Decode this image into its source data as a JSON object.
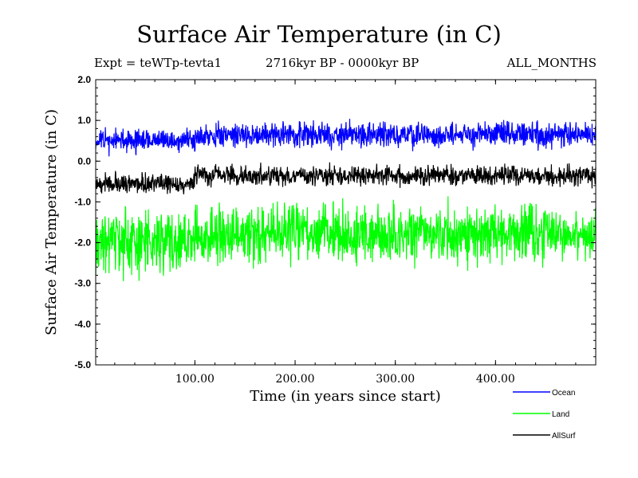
{
  "chart_data": {
    "type": "line",
    "title": "Surface Air Temperature (in C)",
    "subtitle_left": "Expt = teWTp-tevta1",
    "subtitle_center": "2716kyr BP - 0000kyr BP",
    "subtitle_right": "ALL_MONTHS",
    "xlabel": "Time (in years since start)",
    "ylabel": "Surface Air Temperature (in C)",
    "xlim": [
      1,
      500
    ],
    "ylim": [
      -5.0,
      2.0
    ],
    "xticks": [
      100,
      200,
      300,
      400
    ],
    "xtick_labels": [
      "100.00",
      "200.00",
      "300.00",
      "400.00"
    ],
    "yticks": [
      2.0,
      1.0,
      0.0,
      -1.0,
      -2.0,
      -3.0,
      -4.0,
      -5.0
    ],
    "ytick_labels": [
      "2.0",
      "1.0",
      "0.0",
      "-1.0",
      "-2.0",
      "-3.0",
      "-4.0",
      "-5.0"
    ],
    "series": [
      {
        "name": "Ocean",
        "color": "#0000ff",
        "segments": [
          {
            "x0": 1,
            "x1": 100,
            "mean": 0.5,
            "spread": 0.4
          },
          {
            "x0": 100,
            "x1": 500,
            "mean": 0.65,
            "spread": 0.45
          }
        ],
        "seed": 11
      },
      {
        "name": "Land",
        "color": "#00ff00",
        "segments": [
          {
            "x0": 1,
            "x1": 100,
            "mean": -2.0,
            "spread": 1.1
          },
          {
            "x0": 100,
            "x1": 500,
            "mean": -1.8,
            "spread": 1.0
          }
        ],
        "seed": 23
      },
      {
        "name": "AllSurf",
        "color": "#000000",
        "segments": [
          {
            "x0": 1,
            "x1": 100,
            "mean": -0.55,
            "spread": 0.35
          },
          {
            "x0": 100,
            "x1": 500,
            "mean": -0.35,
            "spread": 0.35
          }
        ],
        "seed": 37
      }
    ],
    "legend": [
      "Ocean",
      "Land",
      "AllSurf"
    ]
  }
}
